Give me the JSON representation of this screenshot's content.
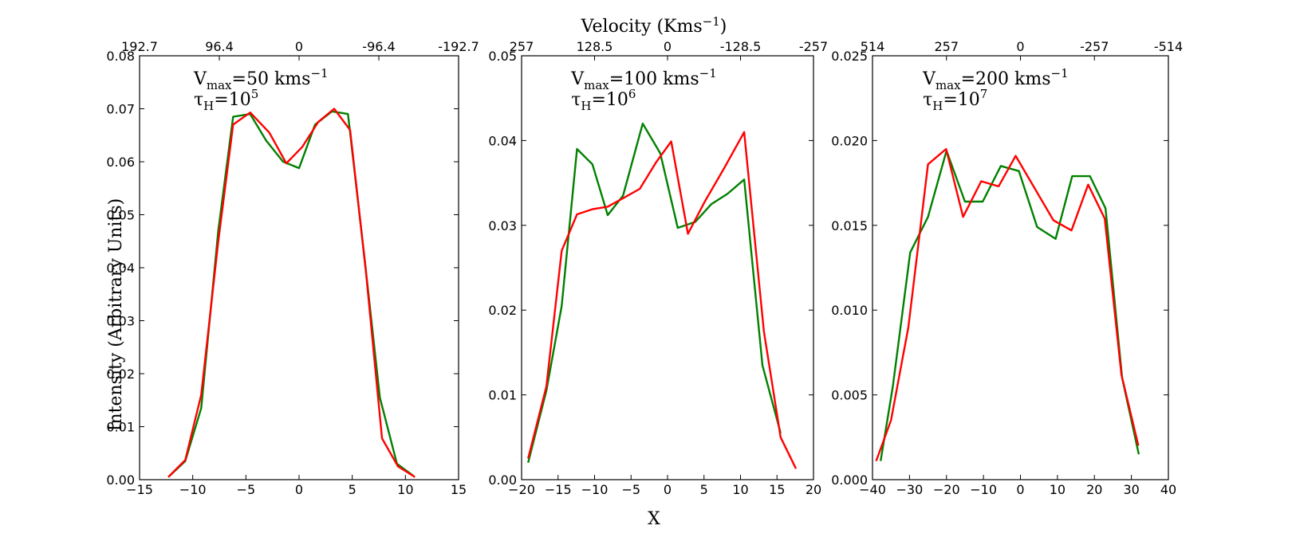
{
  "figure": {
    "xlabel": "X",
    "ylabel": "Intensity (Arbitrary Units)",
    "top_label": "Velocity (Kms",
    "top_label_sup": "−1",
    "top_label_close": ")"
  },
  "series_colors": [
    "#008000",
    "#ff0000"
  ],
  "chart_data": [
    {
      "type": "line",
      "annotation": {
        "v_sym": "V",
        "v_sub": "max",
        "v_text": "=50 kms",
        "v_sup": "−1",
        "tau_sym": "τ",
        "tau_sub": "H",
        "tau_text": "=10",
        "tau_sup": "5"
      },
      "xlim": [
        -15,
        15
      ],
      "ylim": [
        0,
        0.08
      ],
      "x_ticks": [
        -15,
        -10,
        -5,
        0,
        5,
        10,
        15
      ],
      "x_tick_labels": [
        "−15",
        "−10",
        "−5",
        "0",
        "5",
        "10",
        "15"
      ],
      "y_ticks": [
        0,
        0.01,
        0.02,
        0.03,
        0.04,
        0.05,
        0.06,
        0.07,
        0.08
      ],
      "y_tick_labels": [
        "0.00",
        "0.01",
        "0.02",
        "0.03",
        "0.04",
        "0.05",
        "0.06",
        "0.07",
        "0.08"
      ],
      "top_ticks": [
        -15,
        -7.5,
        0,
        7.5,
        15
      ],
      "top_tick_labels": [
        "192.7",
        "96.4",
        "0",
        "-96.4",
        "-192.7"
      ],
      "series": [
        {
          "x": [
            -12.3,
            -10.7,
            -9.2,
            -7.6,
            -6.2,
            -4.6,
            -3.1,
            -1.5,
            0,
            1.5,
            3.1,
            4.6,
            6.2,
            7.6,
            9.2,
            10.7
          ],
          "y": [
            0.0005,
            0.0035,
            0.0135,
            0.047,
            0.0685,
            0.069,
            0.064,
            0.06,
            0.0588,
            0.067,
            0.0695,
            0.069,
            0.041,
            0.0155,
            0.003,
            0.0008
          ]
        },
        {
          "x": [
            -12.3,
            -10.7,
            -9.2,
            -7.6,
            -6.2,
            -4.6,
            -2.8,
            -1.2,
            0.3,
            1.8,
            3.3,
            4.8,
            6.3,
            7.8,
            9.3,
            10.9
          ],
          "y": [
            0.0005,
            0.0037,
            0.016,
            0.045,
            0.067,
            0.0693,
            0.0655,
            0.0597,
            0.0628,
            0.0675,
            0.07,
            0.066,
            0.039,
            0.0078,
            0.0025,
            0.0005
          ]
        }
      ]
    },
    {
      "type": "line",
      "annotation": {
        "v_sym": "V",
        "v_sub": "max",
        "v_text": "=100 kms",
        "v_sup": "−1",
        "tau_sym": "τ",
        "tau_sub": "H",
        "tau_text": "=10",
        "tau_sup": "6"
      },
      "xlim": [
        -20,
        20
      ],
      "ylim": [
        0,
        0.05
      ],
      "x_ticks": [
        -20,
        -15,
        -10,
        -5,
        0,
        5,
        10,
        15,
        20
      ],
      "x_tick_labels": [
        "−20",
        "−15",
        "−10",
        "−5",
        "0",
        "5",
        "10",
        "15",
        "20"
      ],
      "y_ticks": [
        0,
        0.01,
        0.02,
        0.03,
        0.04,
        0.05
      ],
      "y_tick_labels": [
        "0.00",
        "0.01",
        "0.02",
        "0.03",
        "0.04",
        "0.05"
      ],
      "top_ticks": [
        -20,
        -10,
        0,
        10,
        20
      ],
      "top_tick_labels": [
        "257",
        "128.5",
        "0",
        "-128.5",
        "-257"
      ],
      "series": [
        {
          "x": [
            -19.1,
            -16.6,
            -14.5,
            -12.4,
            -10.3,
            -8.2,
            -6.1,
            -3.4,
            -1,
            1.4,
            3.8,
            6,
            8.2,
            10.5,
            13,
            15.5
          ],
          "y": [
            0.002,
            0.0105,
            0.0205,
            0.039,
            0.0372,
            0.0312,
            0.0335,
            0.042,
            0.0385,
            0.0297,
            0.0304,
            0.0325,
            0.0337,
            0.0354,
            0.0135,
            0.0055
          ]
        },
        {
          "x": [
            -19.1,
            -16.6,
            -14.5,
            -12.4,
            -10.3,
            -8.2,
            -6.1,
            -3.8,
            -1.6,
            0.5,
            2.8,
            5.1,
            7.8,
            10.5,
            13.2,
            15.5,
            17.6
          ],
          "y": [
            0.0025,
            0.011,
            0.027,
            0.0313,
            0.0319,
            0.0322,
            0.0332,
            0.0343,
            0.0374,
            0.0399,
            0.029,
            0.0328,
            0.0368,
            0.041,
            0.0175,
            0.005,
            0.0013
          ]
        }
      ]
    },
    {
      "type": "line",
      "annotation": {
        "v_sym": "V",
        "v_sub": "max",
        "v_text": "=200 kms",
        "v_sup": "−1",
        "tau_sym": "τ",
        "tau_sub": "H",
        "tau_text": "=10",
        "tau_sup": "7"
      },
      "xlim": [
        -40,
        40
      ],
      "ylim": [
        0,
        0.025
      ],
      "x_ticks": [
        -40,
        -30,
        -20,
        -10,
        0,
        10,
        20,
        30,
        40
      ],
      "x_tick_labels": [
        "−40",
        "−30",
        "−20",
        "−10",
        "0",
        "10",
        "20",
        "30",
        "40"
      ],
      "y_ticks": [
        0,
        0.005,
        0.01,
        0.015,
        0.02,
        0.025
      ],
      "y_tick_labels": [
        "0.000",
        "0.005",
        "0.010",
        "0.015",
        "0.020",
        "0.025"
      ],
      "top_ticks": [
        -40,
        -20,
        0,
        20,
        40
      ],
      "top_tick_labels": [
        "514",
        "257",
        "0",
        "-257",
        "-514"
      ],
      "series": [
        {
          "x": [
            -37.8,
            -34.5,
            -29.8,
            -25,
            -20,
            -15,
            -10.2,
            -5.3,
            -0.4,
            4.5,
            9.5,
            14,
            18.8,
            23,
            27.5,
            32
          ],
          "y": [
            0.0011,
            0.0055,
            0.0134,
            0.0155,
            0.0194,
            0.0164,
            0.0164,
            0.0185,
            0.0182,
            0.0149,
            0.0142,
            0.0179,
            0.0179,
            0.016,
            0.006,
            0.0015
          ]
        },
        {
          "x": [
            -39,
            -35,
            -30.3,
            -25,
            -20.1,
            -15.5,
            -10.6,
            -5.9,
            -1.3,
            8.9,
            13.8,
            18.3,
            22.8,
            27.3,
            31.9
          ],
          "y": [
            0.0011,
            0.0035,
            0.009,
            0.0186,
            0.0195,
            0.0155,
            0.0176,
            0.0173,
            0.0191,
            0.0153,
            0.0147,
            0.0174,
            0.0154,
            0.0062,
            0.002
          ]
        }
      ]
    }
  ]
}
